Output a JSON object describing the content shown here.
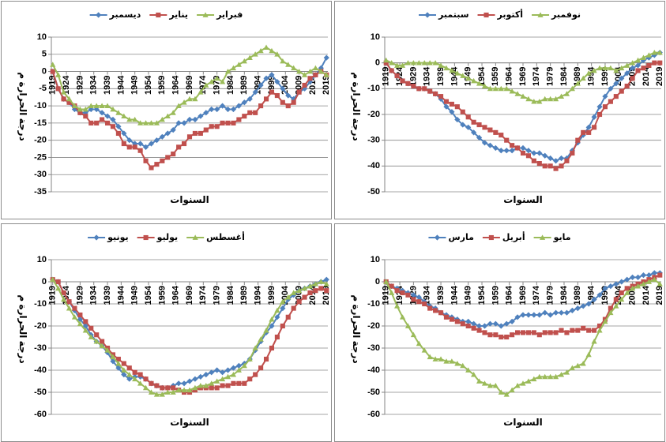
{
  "chart_data": [
    {
      "type": "line",
      "y_label": "درجة الحرارة م",
      "x_label": "السنوات",
      "x": [
        1919,
        1921,
        1923,
        1925,
        1927,
        1929,
        1931,
        1933,
        1935,
        1937,
        1939,
        1941,
        1943,
        1945,
        1947,
        1949,
        1951,
        1953,
        1955,
        1957,
        1959,
        1961,
        1963,
        1965,
        1967,
        1969,
        1971,
        1973,
        1975,
        1977,
        1979,
        1981,
        1983,
        1985,
        1987,
        1989,
        1991,
        1993,
        1995,
        1997,
        1999,
        2001,
        2003,
        2005,
        2007,
        2009,
        2011,
        2013,
        2015,
        2017,
        2019
      ],
      "xlim": [
        1918.5,
        2019.5
      ],
      "xticks": [
        1919,
        1924,
        1929,
        1934,
        1939,
        1944,
        1949,
        1954,
        1959,
        1964,
        1969,
        1974,
        1979,
        1984,
        1989,
        1994,
        1999,
        2004,
        2009,
        2014,
        2019
      ],
      "ylim": [
        -35,
        10
      ],
      "yticks": [
        10,
        5,
        0,
        -5,
        -10,
        -15,
        -20,
        -25,
        -30,
        -35
      ],
      "grid": true,
      "series": [
        {
          "name": "ديسمبر",
          "color": "#4f81bd",
          "marker": "diamond",
          "values": [
            0,
            -5,
            -8,
            -9,
            -11,
            -12,
            -12,
            -11,
            -11,
            -12,
            -13,
            -14,
            -16,
            -18,
            -20,
            -21,
            -21,
            -22,
            -21,
            -20,
            -19,
            -18,
            -17,
            -15,
            -15,
            -14,
            -14,
            -13,
            -12,
            -11,
            -11,
            -10,
            -11,
            -11,
            -10,
            -9,
            -8,
            -6,
            -4,
            -2,
            -1,
            -3,
            -5,
            -7,
            -8,
            -6,
            -5,
            -3,
            -1,
            1,
            4
          ]
        },
        {
          "name": "يناير",
          "color": "#c0504d",
          "marker": "square",
          "values": [
            0,
            -5,
            -8,
            -9,
            -10,
            -12,
            -13,
            -15,
            -15,
            -14,
            -15,
            -16,
            -18,
            -21,
            -22,
            -22,
            -23,
            -26,
            -28,
            -27,
            -26,
            -25,
            -24,
            -22,
            -21,
            -19,
            -18,
            -18,
            -17,
            -16,
            -16,
            -15,
            -15,
            -15,
            -14,
            -13,
            -12,
            -12,
            -10,
            -8,
            -6,
            -7,
            -9,
            -10,
            -9,
            -6,
            -4,
            -2,
            -1,
            0,
            -1
          ]
        },
        {
          "name": "فبراير",
          "color": "#9bbb59",
          "marker": "triangle",
          "values": [
            2,
            -1,
            -6,
            -8,
            -10,
            -11,
            -11,
            -10,
            -10,
            -10,
            -10,
            -11,
            -12,
            -13,
            -14,
            -14,
            -15,
            -15,
            -15,
            -15,
            -14,
            -13,
            -12,
            -10,
            -9,
            -8,
            -8,
            -6,
            -4,
            -3,
            -2,
            -3,
            0,
            1,
            2,
            3,
            4,
            5,
            6,
            7,
            6,
            5,
            3,
            2,
            1,
            0,
            -1,
            0,
            1,
            0,
            -1
          ]
        }
      ]
    },
    {
      "type": "line",
      "y_label": "درجة الحرارة م",
      "x_label": "السنوات",
      "x": [
        1919,
        1921,
        1923,
        1925,
        1927,
        1929,
        1931,
        1933,
        1935,
        1937,
        1939,
        1941,
        1943,
        1945,
        1947,
        1949,
        1951,
        1953,
        1955,
        1957,
        1959,
        1961,
        1963,
        1965,
        1967,
        1969,
        1971,
        1973,
        1975,
        1977,
        1979,
        1981,
        1983,
        1985,
        1987,
        1989,
        1991,
        1993,
        1995,
        1997,
        1999,
        2001,
        2003,
        2005,
        2007,
        2009,
        2011,
        2013,
        2015,
        2017,
        2019
      ],
      "xlim": [
        1918.5,
        2019.5
      ],
      "xticks": [
        1919,
        1924,
        1929,
        1934,
        1939,
        1944,
        1949,
        1954,
        1959,
        1964,
        1969,
        1974,
        1979,
        1984,
        1989,
        1994,
        1999,
        2004,
        2009,
        2014,
        2019
      ],
      "ylim": [
        -50,
        10
      ],
      "yticks": [
        10,
        0,
        -10,
        -20,
        -30,
        -40,
        -50
      ],
      "grid": true,
      "series": [
        {
          "name": "سبتمبر",
          "color": "#4f81bd",
          "marker": "diamond",
          "values": [
            0,
            -3,
            -5,
            -7,
            -8,
            -9,
            -10,
            -10,
            -11,
            -12,
            -14,
            -17,
            -19,
            -22,
            -24,
            -25,
            -27,
            -29,
            -31,
            -32,
            -33,
            -34,
            -34,
            -34,
            -33,
            -33,
            -34,
            -35,
            -35,
            -36,
            -37,
            -38,
            -37,
            -37,
            -34,
            -31,
            -28,
            -25,
            -21,
            -17,
            -13,
            -10,
            -8,
            -6,
            -4,
            -2,
            -1,
            1,
            2,
            3,
            4
          ]
        },
        {
          "name": "أكتوبر",
          "color": "#c0504d",
          "marker": "square",
          "values": [
            0,
            -3,
            -5,
            -7,
            -8,
            -9,
            -10,
            -10,
            -11,
            -12,
            -13,
            -15,
            -16,
            -17,
            -19,
            -21,
            -23,
            -24,
            -25,
            -26,
            -27,
            -28,
            -30,
            -32,
            -33,
            -35,
            -36,
            -38,
            -39,
            -40,
            -40,
            -41,
            -40,
            -38,
            -35,
            -30,
            -27,
            -27,
            -25,
            -20,
            -17,
            -15,
            -13,
            -11,
            -9,
            -6,
            -3,
            -2,
            -1,
            0,
            0
          ]
        },
        {
          "name": "نوفمبر",
          "color": "#9bbb59",
          "marker": "triangle",
          "values": [
            1,
            0,
            -1,
            -1,
            0,
            0,
            0,
            0,
            0,
            0,
            -1,
            -2,
            -3,
            -4,
            -5,
            -6,
            -7,
            -8,
            -9,
            -10,
            -10,
            -10,
            -10,
            -11,
            -12,
            -13,
            -14,
            -15,
            -15,
            -14,
            -14,
            -14,
            -13,
            -12,
            -10,
            -8,
            -6,
            -4,
            -3,
            -2,
            -2,
            -2,
            -3,
            -2,
            -1,
            0,
            1,
            2,
            3,
            4,
            4
          ]
        }
      ]
    },
    {
      "type": "line",
      "y_label": "درجة الحرارة م",
      "x_label": "السنوات",
      "x": [
        1919,
        1921,
        1923,
        1925,
        1927,
        1929,
        1931,
        1933,
        1935,
        1937,
        1939,
        1941,
        1943,
        1945,
        1947,
        1949,
        1951,
        1953,
        1955,
        1957,
        1959,
        1961,
        1963,
        1965,
        1967,
        1969,
        1971,
        1973,
        1975,
        1977,
        1979,
        1981,
        1983,
        1985,
        1987,
        1989,
        1991,
        1993,
        1995,
        1997,
        1999,
        2001,
        2003,
        2005,
        2007,
        2009,
        2011,
        2013,
        2015,
        2017,
        2019
      ],
      "xlim": [
        1918.5,
        2019.5
      ],
      "xticks": [
        1919,
        1924,
        1929,
        1934,
        1939,
        1944,
        1949,
        1954,
        1959,
        1964,
        1969,
        1974,
        1979,
        1984,
        1989,
        1994,
        1999,
        2004,
        2009,
        2014,
        2019
      ],
      "ylim": [
        -60,
        10
      ],
      "yticks": [
        10,
        0,
        -10,
        -20,
        -30,
        -40,
        -50,
        -60
      ],
      "grid": true,
      "series": [
        {
          "name": "يونيو",
          "color": "#4f81bd",
          "marker": "diamond",
          "values": [
            1,
            0,
            -5,
            -9,
            -13,
            -17,
            -20,
            -24,
            -27,
            -29,
            -32,
            -36,
            -39,
            -42,
            -44,
            -43,
            -43,
            -44,
            -46,
            -47,
            -48,
            -48,
            -47,
            -46,
            -46,
            -45,
            -44,
            -43,
            -42,
            -41,
            -40,
            -41,
            -40,
            -39,
            -38,
            -37,
            -35,
            -31,
            -27,
            -23,
            -20,
            -16,
            -12,
            -8,
            -6,
            -4,
            -3,
            -2,
            -1,
            0,
            1
          ]
        },
        {
          "name": "يوليو",
          "color": "#c0504d",
          "marker": "square",
          "values": [
            1,
            0,
            -5,
            -9,
            -12,
            -15,
            -18,
            -21,
            -24,
            -27,
            -30,
            -33,
            -35,
            -37,
            -39,
            -41,
            -42,
            -44,
            -46,
            -47,
            -48,
            -48,
            -48,
            -49,
            -50,
            -50,
            -49,
            -48,
            -48,
            -48,
            -48,
            -47,
            -47,
            -46,
            -46,
            -46,
            -44,
            -42,
            -39,
            -35,
            -30,
            -25,
            -20,
            -16,
            -12,
            -9,
            -7,
            -5,
            -4,
            -3,
            -4
          ]
        },
        {
          "name": "أغسطس",
          "color": "#9bbb59",
          "marker": "triangle",
          "values": [
            1,
            -3,
            -8,
            -12,
            -16,
            -19,
            -22,
            -25,
            -27,
            -29,
            -31,
            -34,
            -37,
            -40,
            -42,
            -44,
            -46,
            -48,
            -50,
            -51,
            -51,
            -50,
            -50,
            -49,
            -49,
            -49,
            -48,
            -47,
            -47,
            -46,
            -45,
            -44,
            -43,
            -42,
            -40,
            -38,
            -35,
            -30,
            -26,
            -22,
            -17,
            -13,
            -9,
            -7,
            -5,
            -4,
            -3,
            -2,
            -1,
            0,
            -1
          ]
        }
      ]
    },
    {
      "type": "line",
      "y_label": "درجة الحرارة م",
      "x_label": "السنوات",
      "x": [
        1919,
        1921,
        1923,
        1925,
        1927,
        1929,
        1931,
        1933,
        1935,
        1937,
        1939,
        1941,
        1943,
        1945,
        1947,
        1949,
        1951,
        1953,
        1955,
        1957,
        1959,
        1961,
        1963,
        1965,
        1967,
        1969,
        1971,
        1973,
        1975,
        1977,
        1979,
        1981,
        1983,
        1985,
        1987,
        1989,
        1991,
        1993,
        1995,
        1997,
        1999,
        2001,
        2003,
        2005,
        2007,
        2009,
        2011,
        2013,
        2015,
        2017,
        2019
      ],
      "xlim": [
        1918.5,
        2019.5
      ],
      "xticks": [
        1919,
        1924,
        1929,
        1934,
        1939,
        1944,
        1949,
        1954,
        1959,
        1964,
        1969,
        1974,
        1979,
        1984,
        1989,
        1994,
        1999,
        2004,
        2009,
        2014,
        2019
      ],
      "ylim": [
        -60,
        10
      ],
      "yticks": [
        10,
        0,
        -10,
        -20,
        -30,
        -40,
        -50,
        -60
      ],
      "grid": true,
      "series": [
        {
          "name": "مارس",
          "color": "#4f81bd",
          "marker": "diamond",
          "values": [
            0,
            -2,
            -3,
            -4,
            -5,
            -6,
            -7,
            -9,
            -11,
            -12,
            -14,
            -15,
            -16,
            -17,
            -18,
            -18,
            -19,
            -20,
            -20,
            -19,
            -19,
            -20,
            -19,
            -18,
            -16,
            -15,
            -15,
            -15,
            -15,
            -14,
            -15,
            -14,
            -14,
            -14,
            -13,
            -12,
            -11,
            -10,
            -8,
            -6,
            -3,
            -2,
            -1,
            0,
            1,
            2,
            2,
            3,
            3,
            4,
            4
          ]
        },
        {
          "name": "أبريل",
          "color": "#c0504d",
          "marker": "square",
          "values": [
            0,
            -2,
            -4,
            -5,
            -6,
            -8,
            -9,
            -10,
            -12,
            -13,
            -14,
            -16,
            -17,
            -18,
            -19,
            -20,
            -21,
            -22,
            -23,
            -24,
            -24,
            -25,
            -25,
            -24,
            -23,
            -23,
            -23,
            -23,
            -24,
            -23,
            -23,
            -23,
            -22,
            -23,
            -22,
            -22,
            -21,
            -22,
            -22,
            -20,
            -17,
            -12,
            -8,
            -5,
            -3,
            -2,
            -1,
            0,
            1,
            2,
            3
          ]
        },
        {
          "name": "مايو",
          "color": "#9bbb59",
          "marker": "triangle",
          "values": [
            0,
            -5,
            -11,
            -16,
            -20,
            -24,
            -28,
            -31,
            -34,
            -35,
            -35,
            -36,
            -36,
            -37,
            -38,
            -40,
            -42,
            -45,
            -46,
            -47,
            -47,
            -50,
            -51,
            -49,
            -47,
            -46,
            -45,
            -44,
            -43,
            -43,
            -43,
            -43,
            -42,
            -41,
            -39,
            -38,
            -37,
            -33,
            -27,
            -22,
            -18,
            -14,
            -11,
            -8,
            -5,
            -3,
            -2,
            -1,
            0,
            1,
            -1
          ]
        }
      ]
    }
  ]
}
